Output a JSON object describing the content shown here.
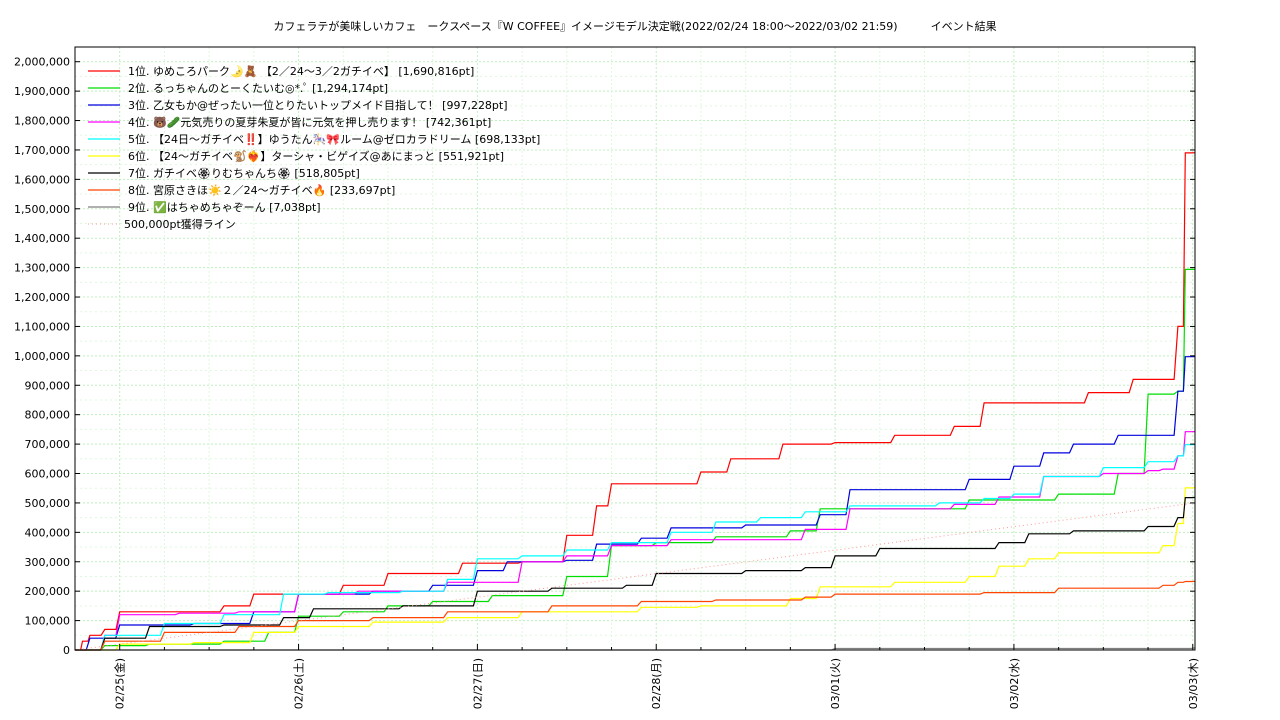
{
  "chart_data": {
    "type": "line",
    "title": "カフェラテが美味しいカフェ　ークスペース『W COFFEE』イメージモデル決定戦(2022/02/24 18:00～2022/03/02 21:59)　　　イベント結果",
    "xlabel": "",
    "ylabel": "",
    "ylim": [
      0,
      2050000
    ],
    "grid": true,
    "legend_position": "top-left",
    "x_ticks": [
      "02/25(金)",
      "02/26(土)",
      "02/27(日)",
      "02/28(月)",
      "03/01(火)",
      "03/02(水)",
      "03/03(木)"
    ],
    "x_tick_values": [
      6,
      30,
      54,
      78,
      102,
      126,
      150
    ],
    "x_range": [
      0,
      150.3
    ],
    "y_ticks": [
      0,
      100000,
      200000,
      300000,
      400000,
      500000,
      600000,
      700000,
      800000,
      900000,
      1000000,
      1100000,
      1200000,
      1300000,
      1400000,
      1500000,
      1600000,
      1700000,
      1800000,
      1900000,
      2000000
    ],
    "y_tick_labels": [
      "0",
      "100,000",
      "200,000",
      "300,000",
      "400,000",
      "500,000",
      "600,000",
      "700,000",
      "800,000",
      "900,000",
      "1,000,000",
      "1,100,000",
      "1,200,000",
      "1,300,000",
      "1,400,000",
      "1,500,000",
      "1,600,000",
      "1,700,000",
      "1,800,000",
      "1,900,000",
      "2,000,000"
    ],
    "x_unit_note": "hours from 2022/02/24 18:00",
    "series": [
      {
        "name": "1位. ゆめころパーク🌛🧸 【2／24〜3／2ガチイベ】 [1,690,816pt]",
        "color": "#ff0000",
        "x": [
          0,
          1,
          2,
          4,
          6,
          20,
          24,
          36,
          42,
          52,
          60,
          66,
          70,
          72,
          84,
          88,
          95,
          102,
          110,
          118,
          122,
          132,
          136,
          142,
          146,
          148,
          149,
          150.3
        ],
        "y": [
          0,
          30000,
          50000,
          70000,
          130000,
          150000,
          190000,
          220000,
          260000,
          295000,
          300000,
          390000,
          490000,
          565000,
          605000,
          650000,
          700000,
          705000,
          730000,
          760000,
          840000,
          840000,
          875000,
          920000,
          920000,
          1100000,
          1690000,
          1690816
        ]
      },
      {
        "name": "2位. るっちゃんのとーくたいむ◎*.ﾟ [1,294,174pt]",
        "color": "#00dd00",
        "x": [
          0,
          4,
          10,
          20,
          26,
          30,
          36,
          42,
          48,
          56,
          66,
          72,
          78,
          86,
          96,
          100,
          110,
          120,
          132,
          140,
          144,
          148,
          149,
          150.3
        ],
        "y": [
          0,
          15000,
          20000,
          30000,
          60000,
          115000,
          130000,
          150000,
          165000,
          185000,
          250000,
          355000,
          365000,
          385000,
          405000,
          480000,
          480000,
          510000,
          530000,
          600000,
          870000,
          880000,
          1294000,
          1294174
        ]
      },
      {
        "name": "3位. 乙女もか@ぜったい一位とりたいトップメイド目指して！ [997,228pt]",
        "color": "#0000dd",
        "x": [
          0,
          2,
          6,
          16,
          24,
          30,
          40,
          48,
          54,
          58,
          66,
          70,
          76,
          80,
          90,
          100,
          104,
          120,
          126,
          130,
          134,
          140,
          146,
          148,
          149,
          150.3
        ],
        "y": [
          0,
          40000,
          85000,
          90000,
          130000,
          190000,
          200000,
          220000,
          270000,
          300000,
          305000,
          360000,
          380000,
          415000,
          425000,
          460000,
          545000,
          580000,
          625000,
          670000,
          700000,
          730000,
          730000,
          880000,
          997000,
          997228
        ]
      },
      {
        "name": "4位. 🐻🥒元気売りの夏芽朱夏が皆に元気を押し売ります！ [742,361pt]",
        "color": "#ff00ff",
        "x": [
          0,
          4,
          6,
          14,
          22,
          30,
          38,
          44,
          50,
          60,
          66,
          72,
          80,
          92,
          98,
          104,
          112,
          118,
          124,
          130,
          138,
          144,
          146,
          148,
          149,
          150.3
        ],
        "y": [
          0,
          50000,
          120000,
          125000,
          130000,
          190000,
          200000,
          200000,
          230000,
          300000,
          320000,
          355000,
          375000,
          375000,
          410000,
          480000,
          480000,
          495000,
          520000,
          590000,
          600000,
          610000,
          615000,
          660000,
          742000,
          742361
        ]
      },
      {
        "name": "5位. 【24日〜ガチイベ‼️】ゆうたん🎠🎀ルーム@ゼロカラドリーム [698,133pt]",
        "color": "#00ffff",
        "x": [
          0,
          4,
          12,
          20,
          28,
          34,
          44,
          50,
          54,
          60,
          66,
          72,
          80,
          86,
          92,
          98,
          104,
          110,
          116,
          122,
          126,
          130,
          138,
          144,
          148,
          149,
          150.3
        ],
        "y": [
          0,
          50000,
          90000,
          120000,
          190000,
          195000,
          200000,
          240000,
          310000,
          320000,
          340000,
          365000,
          400000,
          435000,
          450000,
          470000,
          490000,
          490000,
          500000,
          515000,
          530000,
          590000,
          620000,
          640000,
          660000,
          698000,
          698133
        ]
      },
      {
        "name": "6位. 【24〜ガチイベ🐒❤️‍🔥】ターシャ・ビゲイズ@あにまっと [551,921pt]",
        "color": "#ffff00",
        "x": [
          0,
          6,
          16,
          24,
          30,
          40,
          50,
          60,
          70,
          76,
          84,
          96,
          100,
          110,
          120,
          124,
          128,
          132,
          140,
          146,
          148,
          149,
          150.3
        ],
        "y": [
          0,
          20000,
          25000,
          60000,
          80000,
          95000,
          110000,
          130000,
          130000,
          145000,
          150000,
          175000,
          215000,
          230000,
          250000,
          285000,
          310000,
          330000,
          330000,
          355000,
          430000,
          551000,
          551921
        ]
      },
      {
        "name": "7位. ガチイベ🏵りむちゃんち🏵 [518,805pt]",
        "color": "#000000",
        "x": [
          0,
          4,
          10,
          20,
          28,
          32,
          44,
          54,
          64,
          74,
          78,
          90,
          98,
          102,
          108,
          118,
          124,
          128,
          134,
          140,
          144,
          148,
          149,
          150.3
        ],
        "y": [
          0,
          40000,
          80000,
          85000,
          110000,
          140000,
          150000,
          200000,
          210000,
          220000,
          260000,
          270000,
          280000,
          320000,
          345000,
          345000,
          365000,
          395000,
          405000,
          405000,
          420000,
          450000,
          518000,
          518805
        ]
      },
      {
        "name": "8位. 宮原さきほ☀️２／24〜ガチイベ🔥 [233,697pt]",
        "color": "#ff4400",
        "x": [
          0,
          4,
          12,
          22,
          30,
          40,
          50,
          64,
          76,
          86,
          98,
          102,
          110,
          122,
          132,
          140,
          146,
          148,
          149,
          150.3
        ],
        "y": [
          0,
          30000,
          60000,
          80000,
          100000,
          110000,
          130000,
          150000,
          165000,
          170000,
          180000,
          190000,
          190000,
          195000,
          210000,
          210000,
          220000,
          230000,
          233000,
          233697
        ]
      },
      {
        "name": "9位. ✅はちゃめちゃぞーん [7,038pt]",
        "color": "#808080",
        "x": [
          0,
          102,
          150.3
        ],
        "y": [
          0,
          5000,
          7038
        ]
      },
      {
        "name": "500,000pt獲得ライン",
        "color": "#ff9999",
        "style": "dotted",
        "x": [
          0,
          150.3
        ],
        "y": [
          0,
          500000
        ]
      }
    ]
  }
}
